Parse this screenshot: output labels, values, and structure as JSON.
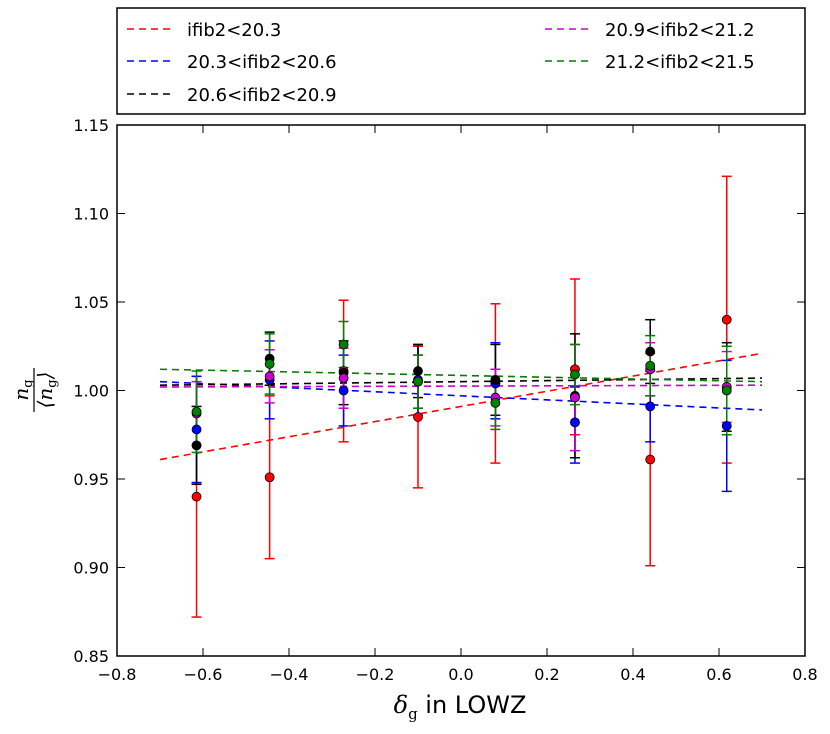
{
  "chart_data": {
    "type": "scatter",
    "title": "",
    "xlabel": {
      "symbol": "δ",
      "subscript": "g",
      "text": " in LOWZ"
    },
    "ylabel": {
      "numerator": "n",
      "numerator_sub": "g",
      "denominator": "⟨n",
      "denominator_sub": "g",
      "denominator_close": "⟩"
    },
    "xlim": [
      -0.8,
      0.8
    ],
    "ylim": [
      0.85,
      1.15
    ],
    "xticks": [
      "−0.8",
      "−0.6",
      "−0.4",
      "−0.2",
      "0.0",
      "0.2",
      "0.4",
      "0.6",
      "0.8"
    ],
    "yticks": [
      "0.85",
      "0.90",
      "0.95",
      "1.00",
      "1.05",
      "1.10",
      "1.15"
    ],
    "xtick_values": [
      -0.8,
      -0.6,
      -0.4,
      -0.2,
      0.0,
      0.2,
      0.4,
      0.6,
      0.8
    ],
    "ytick_values": [
      0.85,
      0.9,
      0.95,
      1.0,
      1.05,
      1.1,
      1.15
    ],
    "fit_x_range": [
      -0.7,
      0.7
    ],
    "series": [
      {
        "name": "ifib2<20.3",
        "color": "#ff0000",
        "x": [
          -0.615,
          -0.445,
          -0.273,
          -0.1,
          0.08,
          0.265,
          0.44,
          0.618
        ],
        "y": [
          0.94,
          0.951,
          1.011,
          0.985,
          1.004,
          1.012,
          0.961,
          1.04
        ],
        "err_low": [
          0.068,
          0.046,
          0.04,
          0.04,
          0.045,
          0.037,
          0.06,
          0.081
        ],
        "err_high": [
          0.068,
          0.046,
          0.04,
          0.04,
          0.045,
          0.051,
          0.06,
          0.081
        ],
        "fit": [
          0.961,
          1.021
        ]
      },
      {
        "name": "20.3<ifib2<20.6",
        "color": "#0000ff",
        "x": [
          -0.615,
          -0.445,
          -0.273,
          -0.1,
          0.08,
          0.265,
          0.44,
          0.618
        ],
        "y": [
          0.978,
          1.006,
          1.0,
          1.006,
          1.004,
          0.982,
          0.991,
          0.98
        ],
        "err_low": [
          0.03,
          0.022,
          0.02,
          0.02,
          0.02,
          0.023,
          0.02,
          0.037
        ],
        "err_high": [
          0.03,
          0.022,
          0.02,
          0.02,
          0.023,
          0.02,
          0.02,
          0.037
        ],
        "fit": [
          1.005,
          0.989
        ]
      },
      {
        "name": "20.6<ifib2<20.9",
        "color": "#000000",
        "x": [
          -0.615,
          -0.445,
          -0.273,
          -0.1,
          0.08,
          0.265,
          0.44,
          0.618
        ],
        "y": [
          0.969,
          1.018,
          1.01,
          1.011,
          1.006,
          0.997,
          1.022,
          1.002
        ],
        "err_low": [
          0.022,
          0.015,
          0.018,
          0.015,
          0.02,
          0.035,
          0.018,
          0.025
        ],
        "err_high": [
          0.022,
          0.015,
          0.018,
          0.015,
          0.02,
          0.035,
          0.018,
          0.025
        ],
        "fit": [
          1.003,
          1.007
        ]
      },
      {
        "name": "20.9<ifib2<21.2",
        "color": "#cc00cc",
        "x": [
          -0.615,
          -0.445,
          -0.273,
          -0.1,
          0.08,
          0.265,
          0.44,
          0.618
        ],
        "y": [
          0.987,
          1.008,
          1.007,
          1.005,
          0.996,
          0.996,
          1.012,
          1.002
        ],
        "err_low": [
          0.018,
          0.015,
          0.017,
          0.015,
          0.016,
          0.03,
          0.015,
          0.02
        ],
        "err_high": [
          0.018,
          0.015,
          0.017,
          0.015,
          0.016,
          0.03,
          0.015,
          0.02
        ],
        "fit": [
          1.002,
          1.003
        ]
      },
      {
        "name": "21.2<ifib2<21.5",
        "color": "#008000",
        "x": [
          -0.615,
          -0.445,
          -0.273,
          -0.1,
          0.08,
          0.265,
          0.44,
          0.618
        ],
        "y": [
          0.988,
          1.015,
          1.026,
          1.005,
          0.993,
          1.009,
          1.014,
          1.0
        ],
        "err_low": [
          0.023,
          0.017,
          0.013,
          0.015,
          0.015,
          0.017,
          0.017,
          0.025
        ],
        "err_high": [
          0.023,
          0.017,
          0.013,
          0.015,
          0.015,
          0.017,
          0.017,
          0.025
        ],
        "fit": [
          1.012,
          1.005
        ]
      }
    ]
  }
}
